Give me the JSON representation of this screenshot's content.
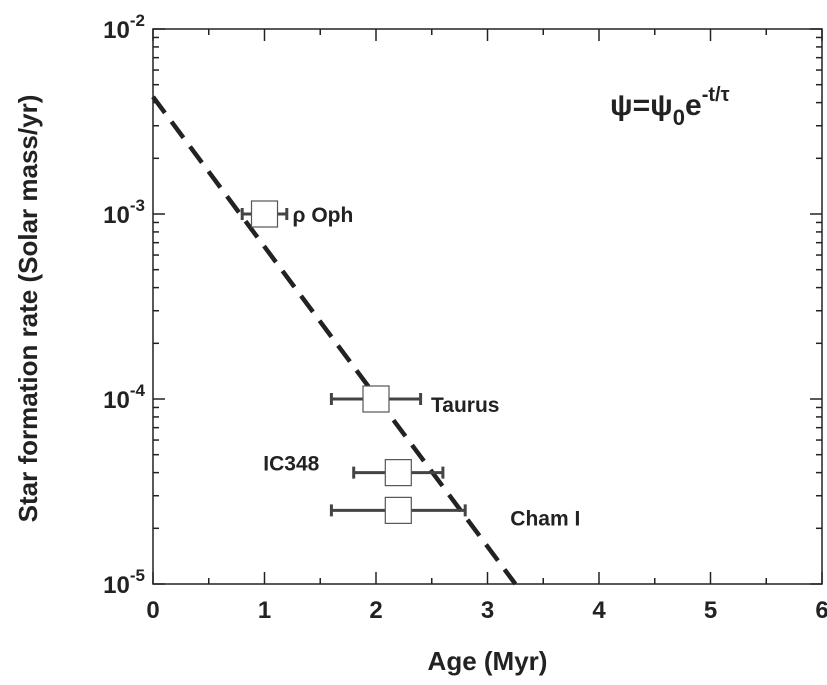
{
  "chart_data": {
    "type": "scatter",
    "xlabel": "Age (Myr)",
    "ylabel": "Star formation rate (Solar mass/yr)",
    "xlim": [
      0,
      6
    ],
    "ylim": [
      1e-05,
      0.01
    ],
    "y_scale": "log",
    "grid": false,
    "x_ticks": [
      {
        "value": 0,
        "label": "0"
      },
      {
        "value": 1,
        "label": "1"
      },
      {
        "value": 2,
        "label": "2"
      },
      {
        "value": 3,
        "label": "3"
      },
      {
        "value": 4,
        "label": "4"
      },
      {
        "value": 5,
        "label": "5"
      },
      {
        "value": 6,
        "label": "6"
      }
    ],
    "y_ticks": [
      {
        "value": 1e-05,
        "base": "10",
        "exp": "-5"
      },
      {
        "value": 0.0001,
        "base": "10",
        "exp": "-4"
      },
      {
        "value": 0.001,
        "base": "10",
        "exp": "-3"
      },
      {
        "value": 0.01,
        "base": "10",
        "exp": "-2"
      }
    ],
    "points": [
      {
        "label": "ρ Oph",
        "x": 1.0,
        "y": 0.001,
        "xerr_low": 0.8,
        "xerr_high": 1.2
      },
      {
        "label": "Taurus",
        "x": 2.0,
        "y": 0.0001,
        "xerr_low": 1.6,
        "xerr_high": 2.4
      },
      {
        "label": "IC348",
        "x": 2.2,
        "y": 4e-05,
        "xerr_low": 1.8,
        "xerr_high": 2.6
      },
      {
        "label": "Cham I",
        "x": 2.2,
        "y": 2.5e-05,
        "xerr_low": 1.6,
        "xerr_high": 2.8
      }
    ],
    "fit_line": {
      "style": "dashed",
      "x": [
        0.0,
        3.25
      ],
      "y": [
        0.0043,
        1e-05
      ]
    },
    "annotation": {
      "psi": "ψ",
      "eq": "=",
      "sub": "0",
      "e": "e",
      "exp": "-t/τ"
    }
  }
}
